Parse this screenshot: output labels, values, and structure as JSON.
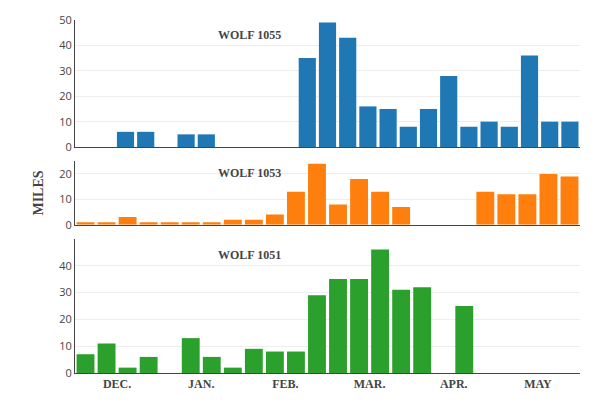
{
  "chart_data": [
    {
      "type": "bar",
      "annotations": [
        "WOLF 1055"
      ],
      "categories": [
        null,
        null,
        null,
        null,
        null,
        null,
        null,
        null,
        null,
        null,
        null,
        null,
        null,
        null,
        null,
        null,
        null,
        null,
        null,
        null,
        null,
        null,
        null,
        null,
        null
      ],
      "values": [
        0,
        0,
        6,
        6,
        0,
        5,
        5,
        0,
        0,
        0,
        0,
        35,
        49,
        43,
        16,
        15,
        8,
        15,
        28,
        8,
        10,
        8,
        36,
        10,
        10
      ],
      "ylim": [
        0,
        50
      ],
      "yticks": [
        0,
        10,
        20,
        30,
        40,
        50
      ],
      "tick_labels": "y"
    },
    {
      "type": "bar",
      "annotations": [
        "WOLF 1053"
      ],
      "ylabel": "MILES",
      "categories": [
        null,
        null,
        null,
        null,
        null,
        null,
        null,
        null,
        null,
        null,
        null,
        null,
        null,
        null,
        null,
        null,
        null,
        null,
        null,
        null,
        null,
        null,
        null,
        null
      ],
      "values": [
        1,
        1,
        3,
        1,
        1,
        1,
        1,
        2,
        2,
        4,
        13,
        24,
        8,
        18,
        13,
        7,
        0,
        0,
        0,
        13,
        12,
        12,
        20,
        19
      ],
      "ylim": [
        0,
        25
      ],
      "yticks": [
        0,
        10,
        20
      ],
      "tick_labels": "y"
    },
    {
      "type": "bar",
      "annotations": [
        "WOLF 1051"
      ],
      "categories": [
        null,
        "DEC.",
        null,
        null,
        null,
        "JAN.",
        null,
        null,
        null,
        "FEB.",
        null,
        null,
        null,
        "MAR.",
        null,
        null,
        null,
        "APR.",
        null,
        null,
        null,
        "MAY",
        null,
        null
      ],
      "values": [
        7,
        11,
        2,
        6,
        0,
        13,
        6,
        2,
        9,
        8,
        8,
        29,
        35,
        35,
        46,
        31,
        32,
        0,
        25,
        0,
        0,
        0,
        0,
        0
      ],
      "ylim": [
        0,
        50
      ],
      "yticks": [
        0,
        10,
        20,
        30,
        40
      ]
    }
  ]
}
